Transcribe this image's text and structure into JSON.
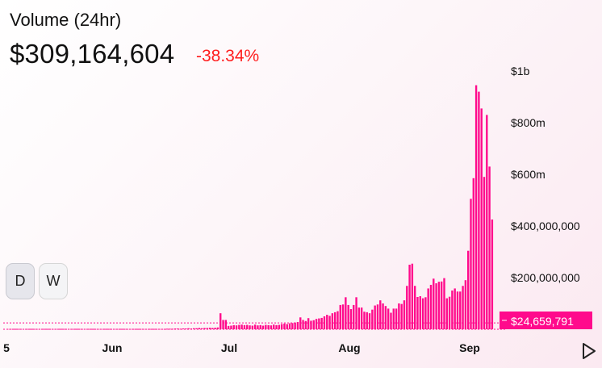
{
  "header": {
    "title": "Volume (24hr)",
    "value": "$309,164,604",
    "change": "-38.34%"
  },
  "controls": {
    "day_label": "D",
    "week_label": "W",
    "play_icon": "play-icon"
  },
  "colors": {
    "bar": "#ff0a8c",
    "change_negative": "#ff1e1e",
    "current_price_tag": "#ff0a8c"
  },
  "chart_data": {
    "type": "bar",
    "x_ticks": [
      "5",
      "Jun",
      "Jul",
      "Aug",
      "Sep"
    ],
    "y_ticks": [
      "$1b",
      "$800m",
      "$600m",
      "$400,000,000",
      "$200,000,000"
    ],
    "y_tick_values": [
      1000000000,
      800000000,
      600000000,
      400000000,
      200000000
    ],
    "ylim": [
      0,
      1000000000
    ],
    "current_label": "$24,659,791",
    "current_value": 24659791,
    "values": [
      1500000.0,
      1500000.0,
      1500000.0,
      1500000.0,
      1500000.0,
      1500000.0,
      1500000.0,
      1500000.0,
      1500000.0,
      1500000.0,
      1500000.0,
      1500000.0,
      1500000.0,
      1500000.0,
      1500000.0,
      1500000.0,
      1500000.0,
      1500000.0,
      1500000.0,
      1500000.0,
      1500000.0,
      1500000.0,
      1500000.0,
      1500000.0,
      1500000.0,
      1500000.0,
      1500000.0,
      1500000.0,
      1500000.0,
      1500000.0,
      1500000.0,
      1500000.0,
      1500000.0,
      1500000.0,
      1500000.0,
      1500000.0,
      1500000.0,
      1500000.0,
      1500000.0,
      1500000.0,
      1500000.0,
      1500000.0,
      1500000.0,
      1500000.0,
      1500000.0,
      1500000.0,
      1500000.0,
      1500000.0,
      1500000.0,
      1500000.0,
      1500000.0,
      1500000.0,
      1500000.0,
      1500000.0,
      1500000.0,
      1500000.0,
      1500000.0,
      1500000.0,
      1500000.0,
      1500000.0,
      2000000.0,
      2000000.0,
      2000000.0,
      3000000.0,
      3000000.0,
      2000000.0,
      3000000.0,
      3000000.0,
      4000000.0,
      3000000.0,
      4000000.0,
      4000000.0,
      5000000.0,
      4000000.0,
      5000000.0,
      5000000.0,
      6000000.0,
      5000000.0,
      6000000.0,
      7000000.0,
      62000000.0,
      36000000.0,
      36000000.0,
      13000000.0,
      14000000.0,
      16000000.0,
      15000000.0,
      17000000.0,
      18000000.0,
      16000000.0,
      17000000.0,
      15000000.0,
      14000000.0,
      18000000.0,
      15000000.0,
      16000000.0,
      14000000.0,
      17000000.0,
      16000000.0,
      15000000.0,
      18000000.0,
      16000000.0,
      17000000.0,
      20000000.0,
      22000000.0,
      20000000.0,
      23000000.0,
      24000000.0,
      26000000.0,
      28000000.0,
      46000000.0,
      36000000.0,
      32000000.0,
      43000000.0,
      33000000.0,
      35000000.0,
      40000000.0,
      42000000.0,
      44000000.0,
      50000000.0,
      56000000.0,
      52000000.0,
      62000000.0,
      66000000.0,
      70000000.0,
      94000000.0,
      96000000.0,
      124000000.0,
      94000000.0,
      78000000.0,
      94000000.0,
      124000000.0,
      84000000.0,
      84000000.0,
      68000000.0,
      66000000.0,
      62000000.0,
      76000000.0,
      92000000.0,
      96000000.0,
      112000000.0,
      100000000.0,
      90000000.0,
      80000000.0,
      64000000.0,
      80000000.0,
      80000000.0,
      100000000.0,
      98000000.0,
      112000000.0,
      168000000.0,
      250000000.0,
      254000000.0,
      168000000.0,
      125000000.0,
      128000000.0,
      120000000.0,
      124000000.0,
      158000000.0,
      172000000.0,
      196000000.0,
      178000000.0,
      184000000.0,
      185000000.0,
      198000000.0,
      120000000.0,
      126000000.0,
      150000000.0,
      158000000.0,
      146000000.0,
      146000000.0,
      168000000.0,
      190000000.0,
      304000000.0,
      505000000.0,
      585000000.0,
      945000000.0,
      920000000.0,
      855000000.0,
      590000000.0,
      830000000.0,
      630000000.0,
      425000000.0
    ]
  }
}
